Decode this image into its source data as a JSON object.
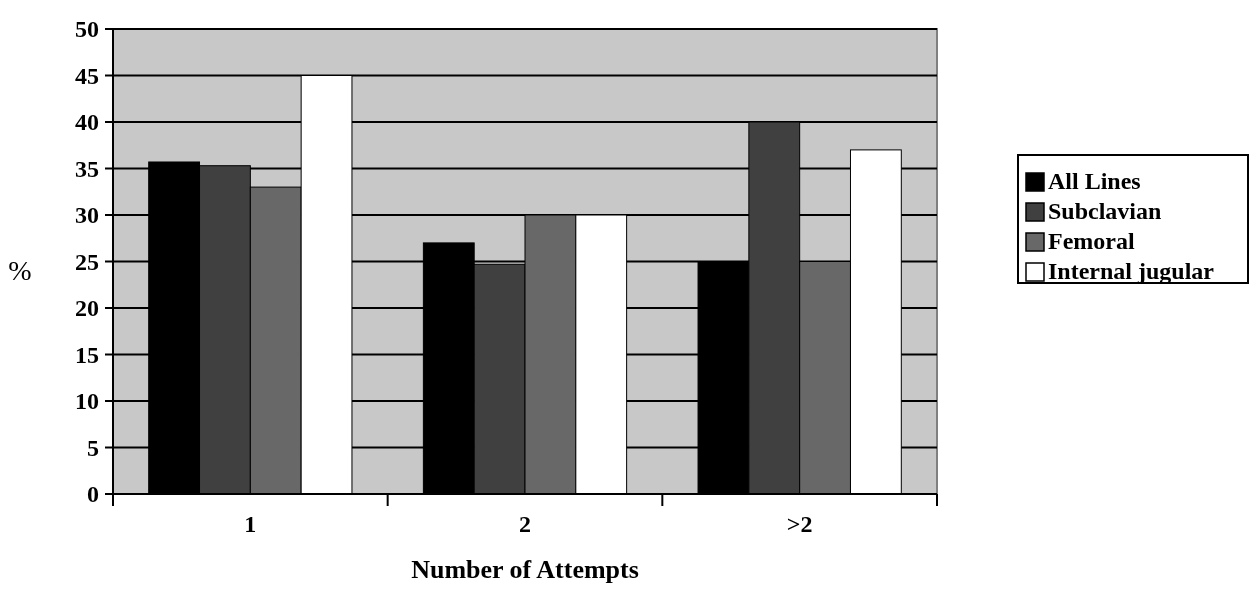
{
  "chart_data": {
    "type": "bar",
    "xlabel": "Number of Attempts",
    "ylabel": "%",
    "categories": [
      "1",
      "2",
      ">2"
    ],
    "series": [
      {
        "name": "All Lines",
        "color": "#000000",
        "values": [
          35.7,
          27,
          25
        ]
      },
      {
        "name": "Subclavian",
        "color": "#404040",
        "values": [
          35.3,
          24.7,
          40
        ]
      },
      {
        "name": "Femoral",
        "color": "#686868",
        "values": [
          33,
          30,
          25
        ]
      },
      {
        "name": "Internal jugular",
        "color": "#ffffff",
        "values": [
          45,
          30,
          37
        ]
      }
    ],
    "ylim": [
      0,
      50
    ],
    "yticks": [
      0,
      5,
      10,
      15,
      20,
      25,
      30,
      35,
      40,
      45,
      50
    ],
    "grid": "y",
    "legend": "right"
  }
}
